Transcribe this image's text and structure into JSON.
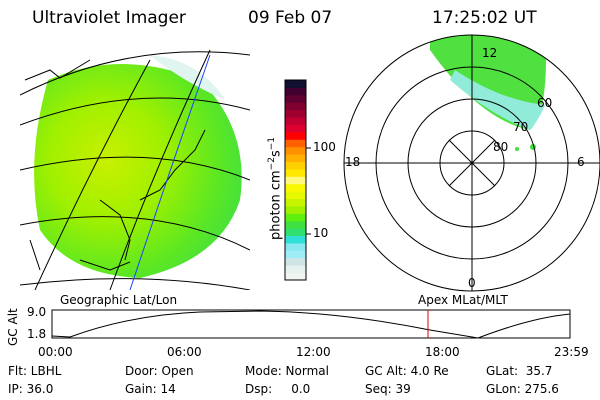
{
  "header": {
    "instrument": "Ultraviolet Imager",
    "date": "09 Feb 07",
    "time": "17:25:02 UT"
  },
  "colorbar": {
    "label": "photon cm",
    "exp1": "−2",
    "unit2": "s",
    "exp2": "−1",
    "ticks": [
      "100",
      "10"
    ],
    "colors": [
      "#f0f5f0",
      "#e6f2ee",
      "#d0e4e4",
      "#a0ecf6",
      "#8ae8f0",
      "#30e0d8",
      "#30e070",
      "#40e040",
      "#60f010",
      "#a0f000",
      "#c8f400",
      "#e8f800",
      "#f8f800",
      "#fff880",
      "#ffe800",
      "#ffd000",
      "#ffb000",
      "#ff9000",
      "#ff6000",
      "#ff0000",
      "#e00030",
      "#c00030",
      "#a00030",
      "#800030",
      "#600030",
      "#400030",
      "#101030"
    ]
  },
  "polar": {
    "top": "12",
    "left": "18",
    "right": "6",
    "bottom": "0",
    "rings": [
      "80",
      "70",
      "60"
    ]
  },
  "timeline": {
    "left_title": "Geographic Lat/Lon",
    "right_title": "Apex MLat/MLT",
    "ylabel": "GC Alt",
    "yticks": [
      "9.0",
      "1.8"
    ],
    "xticks": [
      "00:00",
      "06:00",
      "12:00",
      "18:00",
      "23:59"
    ],
    "current_time_hours": 17.42,
    "marker_color": "#e00000"
  },
  "info": [
    [
      "Flt: LBHL",
      "IP: 36.0"
    ],
    [
      "Door: Open",
      "Gain: 14"
    ],
    [
      "Mode: Normal",
      "Dsp:     0.0"
    ],
    [
      "GC Alt: 4.0 Re",
      "Seq: 39"
    ],
    [
      "GLat:  35.7",
      "GLon: 275.6"
    ]
  ]
}
